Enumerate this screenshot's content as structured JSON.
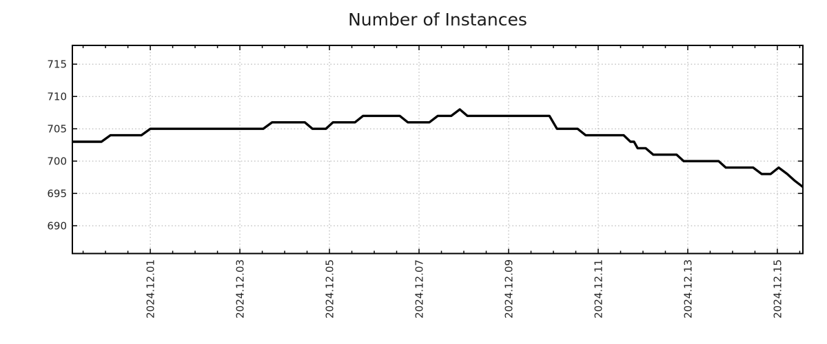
{
  "page": {
    "background": "#ffffff"
  },
  "style": {
    "line_color": "#000000",
    "grid_color": "#ababab",
    "axis_color": "#000000",
    "text_color": "#262626"
  },
  "chart_data": {
    "type": "line",
    "title": "Number of Instances",
    "xlabel": "",
    "ylabel": "",
    "grid": "dotted",
    "legend": "none",
    "x_axis": {
      "kind": "time",
      "unit": "days, offset measured from the 2024.12.01 tick",
      "tick_labels": [
        "2024.12.01",
        "2024.12.03",
        "2024.12.05",
        "2024.12.07",
        "2024.12.09",
        "2024.12.11",
        "2024.12.13",
        "2024.12.15"
      ],
      "tick_offsets_days": [
        0,
        2,
        4,
        6,
        8,
        10,
        12,
        14
      ],
      "minor_tick_interval_days": 0.5,
      "xlim_days": [
        -1.74,
        14.57
      ]
    },
    "y_axis": {
      "ticks": [
        690,
        695,
        700,
        705,
        710,
        715
      ],
      "ylim": [
        685.7,
        717.9
      ]
    },
    "series": [
      {
        "name": "Number of Instances",
        "color": "#000000",
        "points": [
          [
            -1.74,
            703
          ],
          [
            -1.09,
            703
          ],
          [
            -0.89,
            704
          ],
          [
            -0.2,
            704
          ],
          [
            0.0,
            705
          ],
          [
            2.52,
            705
          ],
          [
            2.72,
            706
          ],
          [
            3.45,
            706
          ],
          [
            3.62,
            705
          ],
          [
            3.92,
            705
          ],
          [
            4.08,
            706
          ],
          [
            4.57,
            706
          ],
          [
            4.75,
            707
          ],
          [
            5.57,
            707
          ],
          [
            5.75,
            706
          ],
          [
            6.23,
            706
          ],
          [
            6.42,
            707
          ],
          [
            6.72,
            707
          ],
          [
            6.91,
            708
          ],
          [
            7.08,
            707
          ],
          [
            8.91,
            707
          ],
          [
            9.08,
            705
          ],
          [
            9.54,
            705
          ],
          [
            9.72,
            704
          ],
          [
            10.57,
            704
          ],
          [
            10.72,
            703
          ],
          [
            10.8,
            703
          ],
          [
            10.88,
            702
          ],
          [
            11.06,
            702
          ],
          [
            11.23,
            701
          ],
          [
            11.75,
            701
          ],
          [
            11.91,
            700
          ],
          [
            12.69,
            700
          ],
          [
            12.85,
            699
          ],
          [
            13.46,
            699
          ],
          [
            13.65,
            698
          ],
          [
            13.85,
            698
          ],
          [
            14.03,
            699
          ],
          [
            14.22,
            698
          ],
          [
            14.38,
            697
          ],
          [
            14.57,
            696
          ]
        ]
      }
    ]
  }
}
